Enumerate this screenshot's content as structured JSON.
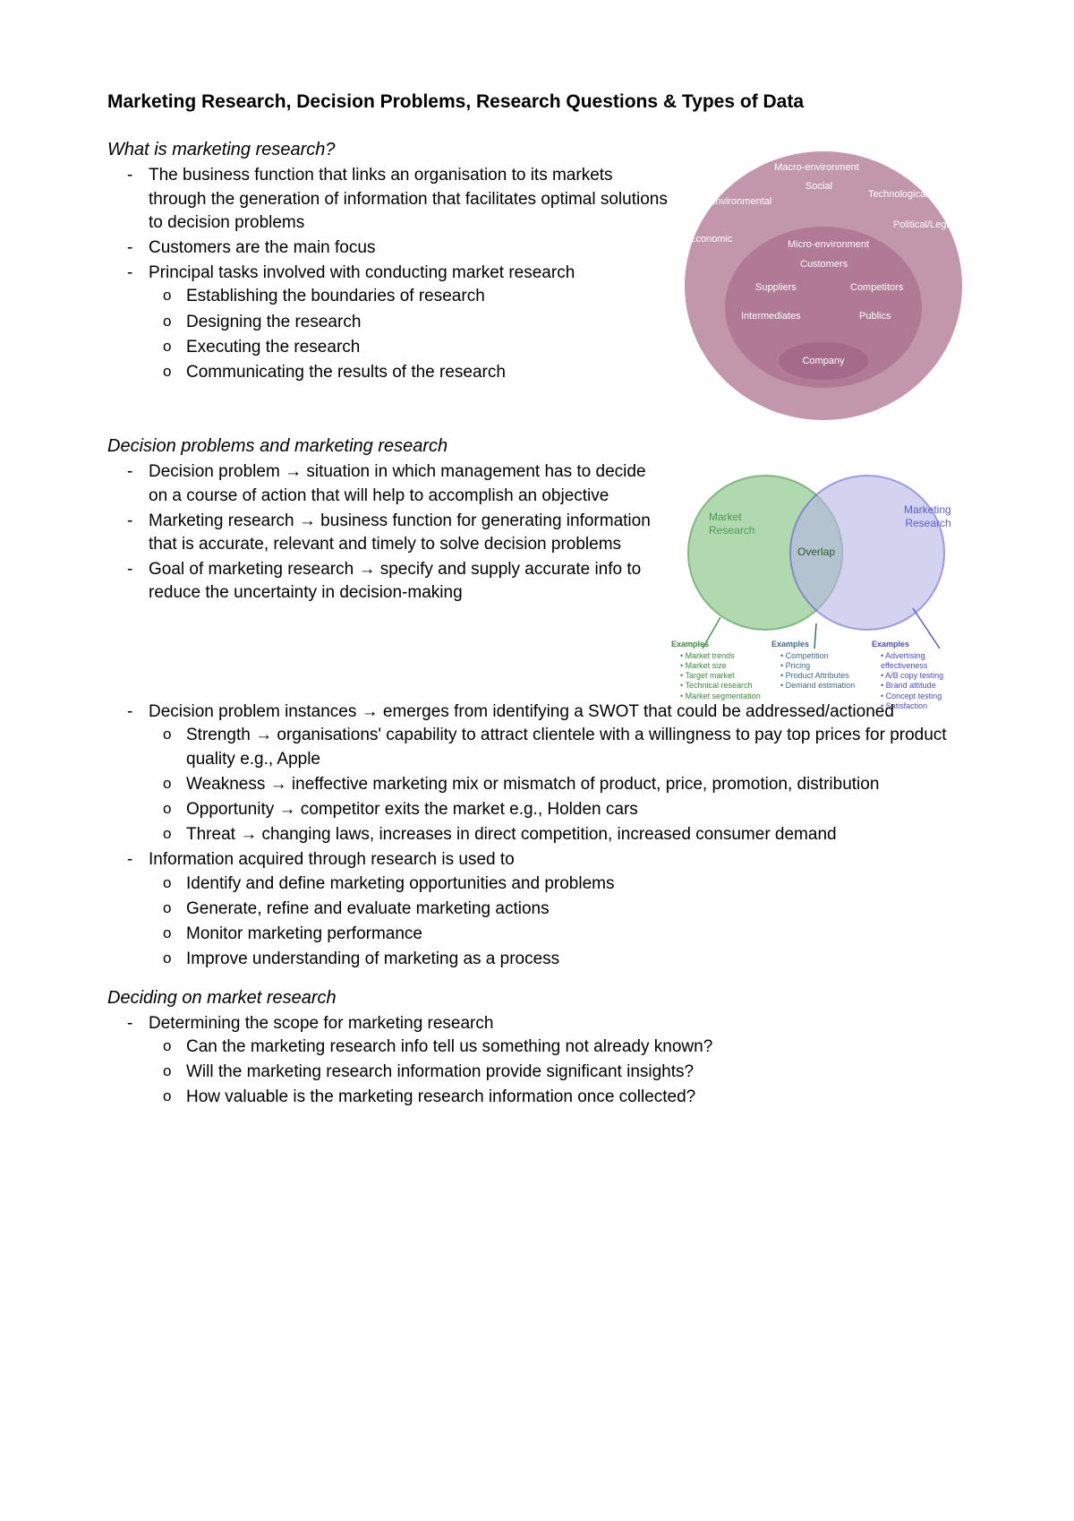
{
  "title": "Marketing Research, Decision Problems, Research Questions & Types of Data",
  "sections": {
    "s1": {
      "heading": "What is marketing research?",
      "b1": "The business function that links an organisation to its markets through the generation of information that facilitates optimal solutions to decision problems",
      "b2": "Customers are the main focus",
      "b3": "Principal tasks involved with conducting market research",
      "b3a": "Establishing the boundaries of research",
      "b3b": "Designing the research",
      "b3c": "Executing the research",
      "b3d": "Communicating the results of the research"
    },
    "s2": {
      "heading": "Decision problems and marketing research",
      "b1": "Decision problem → situation in which management has to decide on a course of action that will help to accomplish an objective",
      "b2": "Marketing research → business function for generating information that is accurate, relevant and timely to solve decision problems",
      "b3": "Goal of marketing research → specify and supply accurate info to reduce the uncertainty in decision-making",
      "b4": "Decision problem instances → emerges from identifying a SWOT that could be addressed/actioned",
      "b4a": "Strength → organisations' capability to attract clientele with a willingness to pay top prices for product quality e.g., Apple",
      "b4b": "Weakness → ineffective marketing mix or mismatch of product, price, promotion, distribution",
      "b4c": "Opportunity → competitor exits the market e.g., Holden cars",
      "b4d": "Threat → changing laws, increases in direct competition, increased consumer demand",
      "b5": "Information acquired through research is used to",
      "b5a": "Identify and define marketing opportunities and problems",
      "b5b": "Generate, refine and evaluate marketing actions",
      "b5c": "Monitor marketing performance",
      "b5d": "Improve understanding of marketing as a process"
    },
    "s3": {
      "heading": "Deciding on market research",
      "b1": "Determining the scope for marketing research",
      "b1a": "Can the marketing research info tell us something not already known?",
      "b1b": "Will the marketing research information provide significant insights?",
      "b1c": "How valuable is the marketing research information once collected?"
    }
  },
  "diagram1": {
    "outer_color": "#c296ab",
    "mid_color": "#b07a95",
    "inner_color": "#a56a89",
    "text_color": "#ffffff",
    "macro": "Macro-environment",
    "micro": "Micro-environment",
    "company": "Company",
    "labels": {
      "social": "Social",
      "technological": "Technological",
      "political": "Political/Legal",
      "environmental": "Environmental",
      "economic": "Economic",
      "customers": "Customers",
      "suppliers": "Suppliers",
      "competitors": "Competitors",
      "intermediates": "Intermediates",
      "publics": "Publics"
    }
  },
  "diagram2": {
    "left_color": "#8fc98f",
    "left_border": "#4a9a4a",
    "right_color": "#b6b6e6",
    "right_border": "#5a5ad6",
    "overlap_color": "#7aa5c2",
    "left_label": "Market\nResearch",
    "right_label": "Marketing\nResearch",
    "overlap_label": "Overlap",
    "examples_header": "Examples",
    "examples": {
      "left": [
        "Market trends",
        "Market size",
        "Target market",
        "Technical research",
        "Market segmentation"
      ],
      "center": [
        "Competition",
        "Pricing",
        "Product Attributes",
        "Demand estimation"
      ],
      "right": [
        "Advertising effectiveness",
        "A/B copy testing",
        "Brand attitude",
        "Concept testing",
        "Satisfaction"
      ]
    },
    "left_ex_color": "#3a8a3a",
    "center_ex_color": "#3a6a8a",
    "right_ex_color": "#4a4ad0"
  }
}
